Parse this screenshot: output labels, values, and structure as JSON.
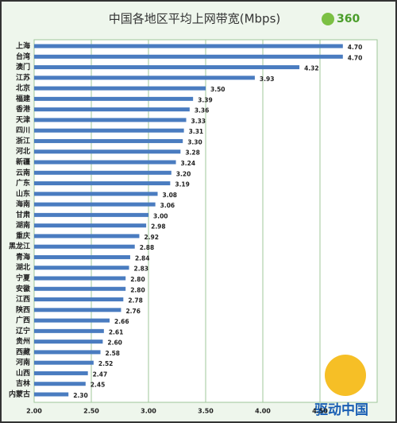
{
  "chart_data": {
    "type": "bar",
    "orientation": "horizontal",
    "title": "中国各地区平均上网带宽(Mbps)",
    "logo": "360",
    "watermark": "驱动中国",
    "categories": [
      "上海",
      "台湾",
      "澳门",
      "江苏",
      "北京",
      "福建",
      "香港",
      "天津",
      "四川",
      "浙江",
      "河北",
      "新疆",
      "云南",
      "广东",
      "山东",
      "海南",
      "甘肃",
      "湖南",
      "重庆",
      "黑龙江",
      "青海",
      "湖北",
      "宁夏",
      "安徽",
      "江西",
      "陕西",
      "广西",
      "辽宁",
      "贵州",
      "西藏",
      "河南",
      "山西",
      "吉林",
      "内蒙古"
    ],
    "values": [
      4.7,
      4.7,
      4.32,
      3.93,
      3.5,
      3.39,
      3.36,
      3.33,
      3.31,
      3.3,
      3.28,
      3.24,
      3.2,
      3.19,
      3.08,
      3.06,
      3.0,
      2.98,
      2.92,
      2.88,
      2.84,
      2.83,
      2.8,
      2.8,
      2.78,
      2.76,
      2.66,
      2.61,
      2.6,
      2.58,
      2.52,
      2.47,
      2.45,
      2.3
    ],
    "value_labels": [
      "4.70",
      "4.70",
      "4.32",
      "3.93",
      "3.50",
      "3.39",
      "3.36",
      "3.33",
      "3.31",
      "3.30",
      "3.28",
      "3.24",
      "3.20",
      "3.19",
      "3.08",
      "3.06",
      "3.00",
      "2.98",
      "2.92",
      "2.88",
      "2.84",
      "2.83",
      "2.80",
      "2.80",
      "2.78",
      "2.76",
      "2.66",
      "2.61",
      "2.60",
      "2.58",
      "2.52",
      "2.47",
      "2.45",
      "2.30"
    ],
    "color": "#4a7cc0",
    "xlim": [
      2,
      5
    ],
    "xticks": [
      {
        "value": 2,
        "label": "2.00"
      },
      {
        "value": 2.5,
        "label": "2.50"
      },
      {
        "value": 3,
        "label": "3.00"
      },
      {
        "value": 3.5,
        "label": "3.50"
      },
      {
        "value": 4,
        "label": "4.00"
      },
      {
        "value": 4.5,
        "label": "4.50"
      }
    ],
    "grid": true
  }
}
